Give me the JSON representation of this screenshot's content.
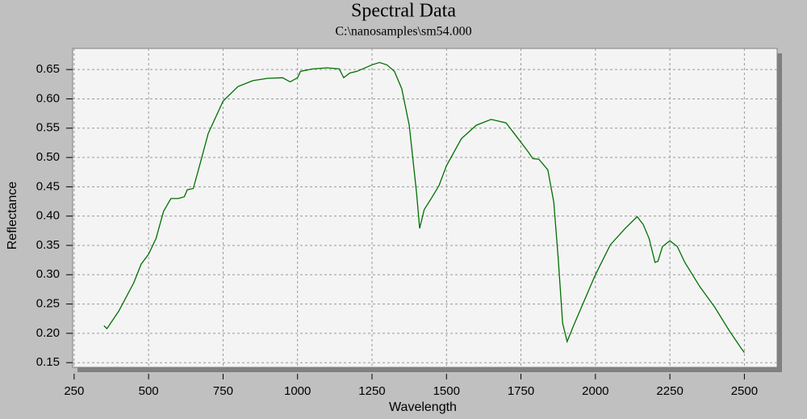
{
  "chart_data": {
    "type": "line",
    "title": "Spectral Data",
    "subtitle": "C:\\nanosamples\\sm54.000",
    "x_label": "Wavelength",
    "y_label": "Reflectance",
    "x": [
      350,
      360,
      400,
      450,
      475,
      500,
      525,
      550,
      575,
      600,
      620,
      630,
      650,
      675,
      700,
      750,
      800,
      850,
      900,
      950,
      975,
      1000,
      1010,
      1050,
      1100,
      1140,
      1155,
      1175,
      1200,
      1250,
      1275,
      1300,
      1325,
      1350,
      1375,
      1400,
      1410,
      1425,
      1450,
      1475,
      1500,
      1550,
      1600,
      1650,
      1700,
      1750,
      1775,
      1790,
      1810,
      1840,
      1860,
      1875,
      1890,
      1905,
      1925,
      1950,
      2000,
      2050,
      2100,
      2140,
      2160,
      2180,
      2200,
      2210,
      2225,
      2250,
      2275,
      2300,
      2350,
      2400,
      2450,
      2490,
      2500
    ],
    "series": [
      {
        "color": "#007000",
        "values": [
          0.213,
          0.208,
          0.238,
          0.286,
          0.318,
          0.335,
          0.362,
          0.408,
          0.43,
          0.43,
          0.433,
          0.445,
          0.447,
          0.493,
          0.541,
          0.596,
          0.621,
          0.631,
          0.635,
          0.636,
          0.629,
          0.636,
          0.647,
          0.651,
          0.653,
          0.651,
          0.636,
          0.644,
          0.647,
          0.658,
          0.662,
          0.658,
          0.647,
          0.617,
          0.555,
          0.438,
          0.379,
          0.411,
          0.431,
          0.452,
          0.486,
          0.532,
          0.555,
          0.565,
          0.559,
          0.526,
          0.509,
          0.498,
          0.497,
          0.479,
          0.424,
          0.328,
          0.217,
          0.186,
          0.211,
          0.241,
          0.3,
          0.351,
          0.379,
          0.399,
          0.386,
          0.362,
          0.321,
          0.323,
          0.348,
          0.358,
          0.348,
          0.321,
          0.28,
          0.245,
          0.204,
          0.174,
          0.167
        ]
      }
    ],
    "xlim": [
      245,
      2610
    ],
    "xticks": [
      250,
      500,
      750,
      1000,
      1250,
      1500,
      1750,
      2000,
      2250,
      2500
    ],
    "ylim": [
      0.142,
      0.686
    ],
    "yticks": [
      {
        "value": 0.15,
        "label": "0.15"
      },
      {
        "value": 0.2,
        "label": "0.20"
      },
      {
        "value": 0.25,
        "label": "0.25"
      },
      {
        "value": 0.3,
        "label": "0.30"
      },
      {
        "value": 0.35,
        "label": "0.35"
      },
      {
        "value": 0.4,
        "label": "0.40"
      },
      {
        "value": 0.45,
        "label": "0.45"
      },
      {
        "value": 0.5,
        "label": "0.50"
      },
      {
        "value": 0.55,
        "label": "0.55"
      },
      {
        "value": 0.6,
        "label": "0.60"
      },
      {
        "value": 0.65,
        "label": "0.65"
      }
    ],
    "grid": true
  }
}
